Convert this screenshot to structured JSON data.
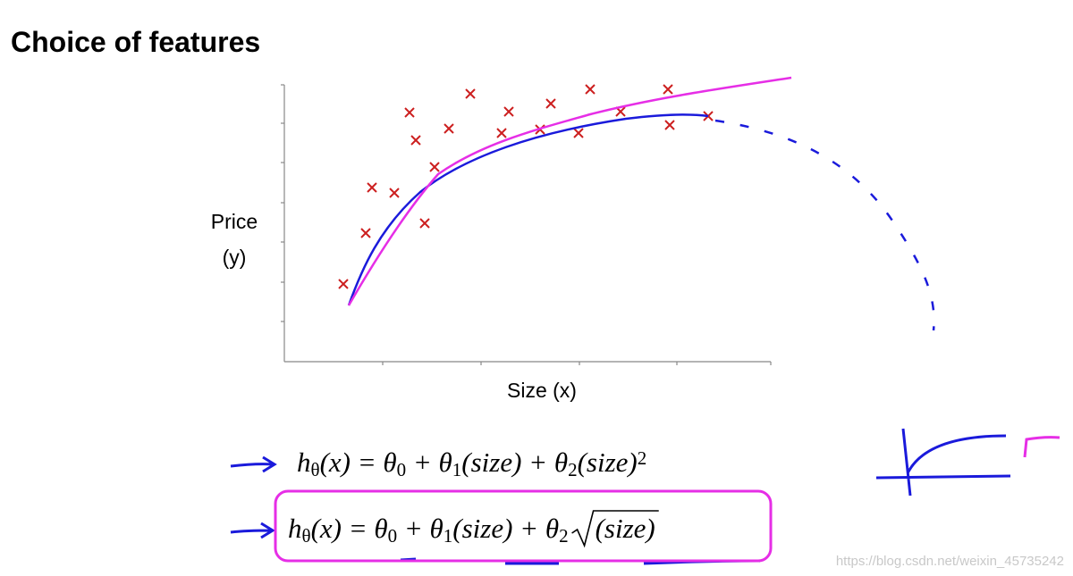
{
  "header": {
    "title": "Choice of features"
  },
  "plot": {
    "y_label_lines": [
      "Price",
      "(y)"
    ],
    "x_label": "Size (x)"
  },
  "formulas": [
    {
      "segments": [
        {
          "text": "h"
        },
        {
          "text": "θ",
          "script": "sub"
        },
        {
          "text": "(x) = θ"
        },
        {
          "text": "0",
          "script": "sub"
        },
        {
          "text": " + θ"
        },
        {
          "text": "1",
          "script": "sub"
        },
        {
          "text": "(size) + θ"
        },
        {
          "text": "2",
          "script": "sub"
        },
        {
          "text": "(size)"
        },
        {
          "text": "2",
          "script": "sup"
        }
      ]
    },
    {
      "segments": [
        {
          "text": "h"
        },
        {
          "text": "θ",
          "script": "sub"
        },
        {
          "text": "(x) = θ"
        },
        {
          "text": "0",
          "script": "sub"
        },
        {
          "text": " + θ"
        },
        {
          "text": "1",
          "script": "sub"
        },
        {
          "text": "(size) + θ"
        },
        {
          "text": "2",
          "script": "sub"
        },
        {
          "text": "(size)",
          "script": "root"
        }
      ]
    }
  ],
  "watermark": "https://blog.csdn.net/weixin_45735242"
}
